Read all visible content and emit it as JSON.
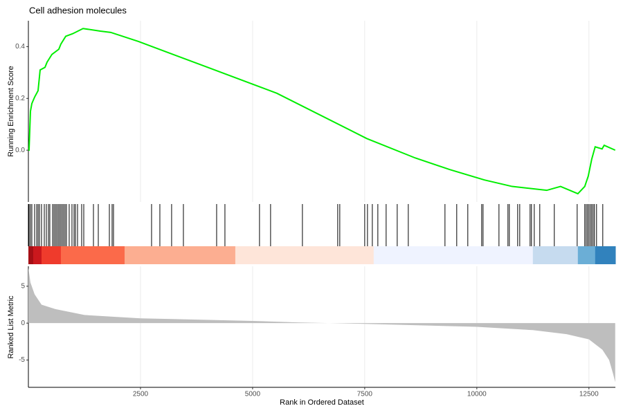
{
  "chart_data": [
    {
      "type": "line",
      "title": "Cell adhesion molecules",
      "ylabel": "Running Enrichment Score",
      "color": "#00ee00",
      "grid": true,
      "x": [
        0,
        15,
        46,
        77,
        139,
        216,
        262,
        370,
        417,
        525,
        679,
        725,
        833,
        988,
        1219,
        1605,
        1836,
        2454,
        3071,
        3997,
        5540,
        7546,
        8627,
        9398,
        10170,
        10787,
        11559,
        11867,
        12253,
        12407,
        12485,
        12562,
        12639,
        12793,
        12840,
        13086
      ],
      "values": [
        0,
        0.0,
        0.15,
        0.18,
        0.205,
        0.23,
        0.31,
        0.32,
        0.34,
        0.37,
        0.39,
        0.41,
        0.44,
        0.45,
        0.47,
        0.46,
        0.455,
        0.42,
        0.38,
        0.32,
        0.22,
        0.045,
        -0.03,
        -0.075,
        -0.115,
        -0.14,
        -0.155,
        -0.14,
        -0.168,
        -0.14,
        -0.1,
        -0.035,
        0.013,
        0.005,
        0.019,
        0.0
      ],
      "xlim": [
        0,
        13090
      ],
      "ylim": [
        -0.2,
        0.5
      ],
      "yticks": [
        {
          "value": 0,
          "label": "0.0"
        },
        0.2,
        0.4
      ]
    },
    {
      "type": "rug",
      "color": "#000000",
      "xlim": [
        0,
        13090
      ],
      "x": [
        15,
        46,
        77,
        139,
        185,
        216,
        247,
        293,
        355,
        401,
        448,
        478,
        540,
        571,
        602,
        633,
        664,
        694,
        725,
        756,
        787,
        818,
        849,
        910,
        972,
        1019,
        1049,
        1096,
        1188,
        1235,
        1451,
        1559,
        1806,
        1867,
        1898,
        2747,
        2932,
        3194,
        3457,
        4198,
        4383,
        5154,
        5401,
        6111,
        6898,
        6944,
        7500,
        7562,
        7670,
        7793,
        7978,
        8225,
        8472,
        9290,
        9552,
        9799,
        10108,
        10139,
        10494,
        10694,
        10725,
        10911,
        10957,
        11188,
        11219,
        11281,
        11404,
        11728,
        12238,
        12407,
        12438,
        12469,
        12500,
        12531,
        12562,
        12593,
        12623,
        12670,
        12809
      ],
      "bands": [
        {
          "start": 0,
          "end": 108,
          "color": "#a50f15"
        },
        {
          "start": 108,
          "end": 293,
          "color": "#cb181d"
        },
        {
          "start": 293,
          "end": 725,
          "color": "#ef3b2c"
        },
        {
          "start": 725,
          "end": 2145,
          "color": "#fb6a4a"
        },
        {
          "start": 2145,
          "end": 4614,
          "color": "#fcae91"
        },
        {
          "start": 4614,
          "end": 7700,
          "color": "#fee5d9"
        },
        {
          "start": 7700,
          "end": 11250,
          "color": "#eff3ff"
        },
        {
          "start": 11250,
          "end": 12253,
          "color": "#c6dbef"
        },
        {
          "start": 12253,
          "end": 12639,
          "color": "#6baed6"
        },
        {
          "start": 12639,
          "end": 13090,
          "color": "#3182bd"
        }
      ]
    },
    {
      "type": "area",
      "ylabel": "Ranked List Metric",
      "xlabel": "Rank in Ordered Dataset",
      "color": "#bebebe",
      "grid": true,
      "x": [
        0,
        46,
        139,
        293,
        602,
        1250,
        2500,
        5000,
        6000,
        7500,
        10000,
        11250,
        12000,
        12500,
        12800,
        12950,
        13040,
        13086
      ],
      "values": [
        7.5,
        5.5,
        3.9,
        2.5,
        1.9,
        1.1,
        0.65,
        0.3,
        0.1,
        -0.1,
        -0.5,
        -0.95,
        -1.5,
        -2.2,
        -3.6,
        -5,
        -6.9,
        -8.0
      ],
      "xlim": [
        0,
        13090
      ],
      "xticks": [
        2500,
        5000,
        7500,
        10000,
        12500
      ],
      "ylim": [
        -8.7,
        7.7
      ],
      "yticks": [
        -5,
        0,
        5
      ]
    }
  ]
}
